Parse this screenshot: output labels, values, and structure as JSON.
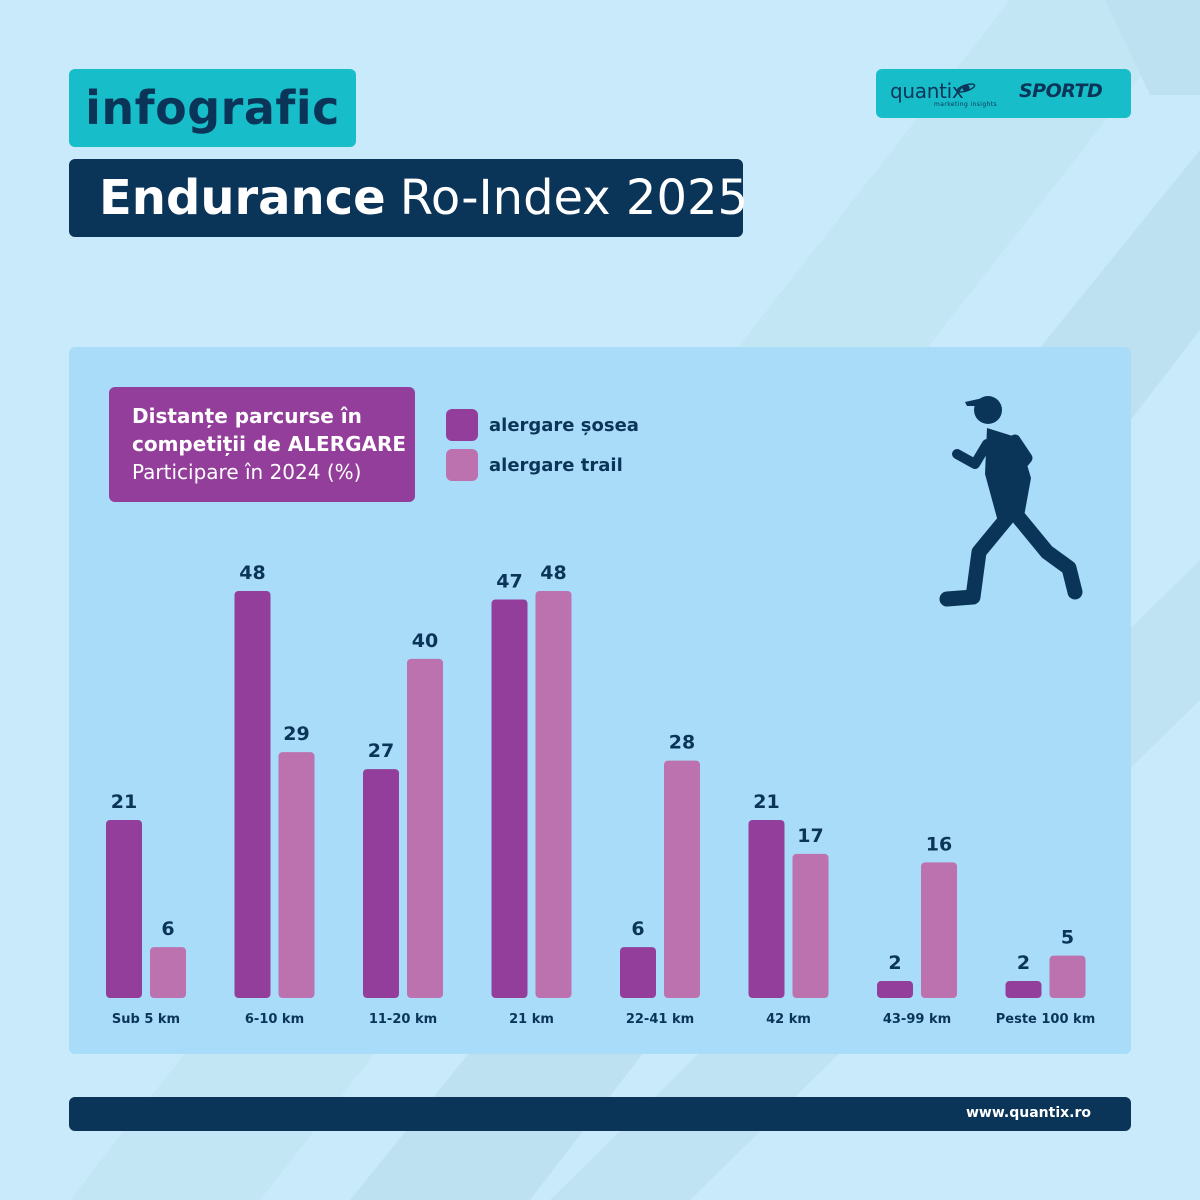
{
  "header": {
    "tag": "infografic",
    "title_bold": "Endurance",
    "title_rest": "Ro-Index 2025"
  },
  "logos": {
    "quantix": "quantix",
    "quantix_tagline": "marketing insights",
    "sport": "SPORTD"
  },
  "footer": {
    "url": "www.quantix.ro"
  },
  "colors": {
    "background": "#c9eafb",
    "panel": "#a8dcf8",
    "navy": "#0b3558",
    "teal": "#17bdc9",
    "road": "#943e9b",
    "trail": "#bd72b0"
  },
  "chart_data": {
    "type": "bar",
    "title_lines": [
      "Distanțe parcurse în",
      "competiții de ALERGARE"
    ],
    "subtitle": "Participare în 2024 (%)",
    "categories": [
      "Sub 5 km",
      "6-10 km",
      "11-20 km",
      "21 km",
      "22-41 km",
      "42 km",
      "43-99 km",
      "Peste 100 km"
    ],
    "series": [
      {
        "name": "alergare șosea",
        "color": "#943e9b",
        "values": [
          21,
          48,
          27,
          47,
          6,
          21,
          2,
          2
        ]
      },
      {
        "name": "alergare trail",
        "color": "#bd72b0",
        "values": [
          6,
          29,
          40,
          48,
          28,
          17,
          16,
          5
        ]
      }
    ],
    "ylim": [
      0,
      48
    ],
    "data_labels": true,
    "grid": false,
    "legend": "top-center"
  }
}
